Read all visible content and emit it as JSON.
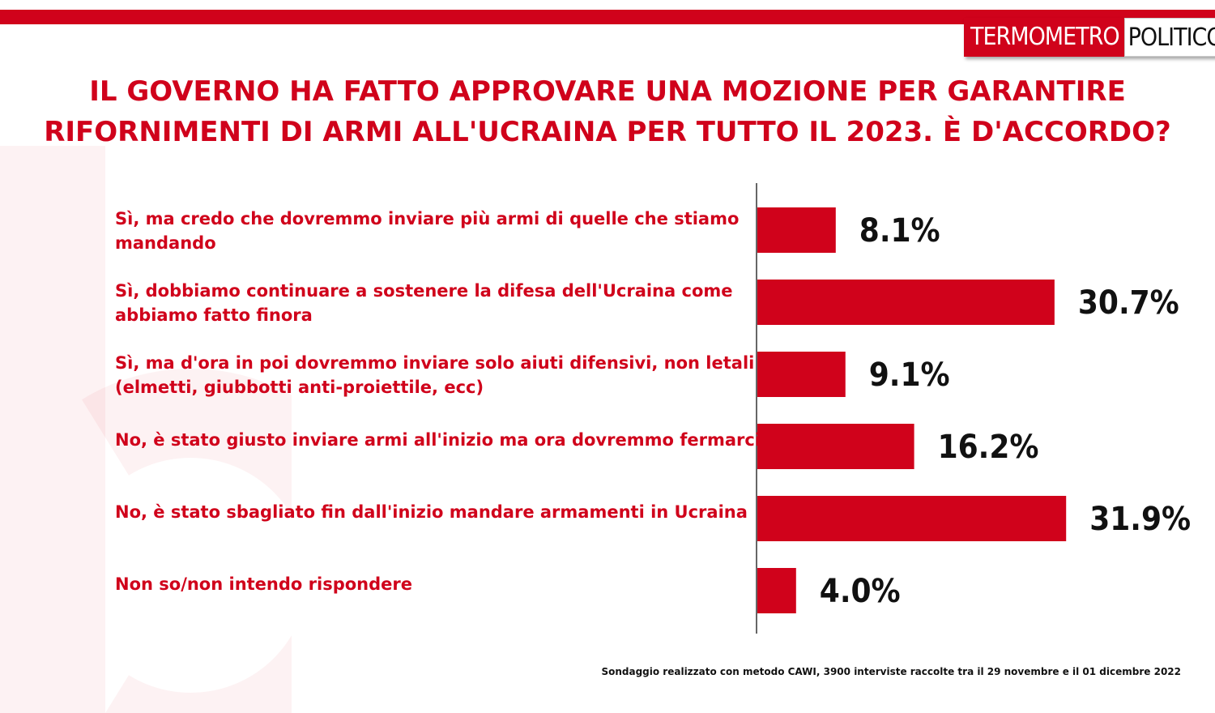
{
  "brand": {
    "part1": "TERMOMETRO",
    "part2": "POLITICO"
  },
  "colors": {
    "accent": "#d0021b",
    "bar": "#d0021b",
    "axis": "#333333",
    "value_text": "#111111"
  },
  "chart_data": {
    "type": "bar",
    "orientation": "horizontal",
    "title": "IL GOVERNO HA FATTO APPROVARE UNA MOZIONE PER GARANTIRE RIFORNIMENTI DI ARMI ALL'UCRAINA PER TUTTO IL 2023. È D'ACCORDO?",
    "categories": [
      "Sì, ma credo che dovremmo inviare più armi di quelle che stiamo mandando",
      "Sì, dobbiamo continuare a sostenere la difesa dell'Ucraina come abbiamo fatto finora",
      "Sì, ma d'ora in poi dovremmo inviare solo aiuti difensivi, non letali (elmetti, giubbotti anti-proiettile, ecc)",
      "No, è stato giusto inviare armi all'inizio ma ora dovremmo fermarci",
      "No, è stato sbagliato fin dall'inizio mandare armamenti in Ucraina",
      "Non so/non intendo rispondere"
    ],
    "values": [
      8.1,
      30.7,
      9.1,
      16.2,
      31.9,
      4.0
    ],
    "value_labels": [
      "8.1%",
      "30.7%",
      "9.1%",
      "16.2%",
      "31.9%",
      "4.0%"
    ],
    "unit": "%",
    "xlim": [
      0,
      40
    ],
    "grid": false,
    "legend": "none"
  },
  "footnote": "Sondaggio realizzato con metodo CAWI, 3900 interviste raccolte tra il 29 novembre e il 01 dicembre 2022"
}
